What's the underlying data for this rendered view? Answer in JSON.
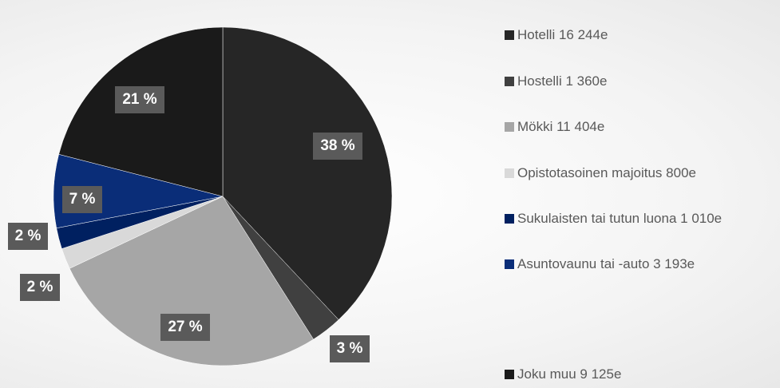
{
  "chart_data": {
    "type": "pie",
    "series": [
      {
        "name": "Hotelli 16 244e",
        "color": "#262626"
      },
      {
        "name": "Hostelli 1 360e",
        "color": "#404040"
      },
      {
        "name": "Mökki 11 404e",
        "color": "#a6a6a6"
      },
      {
        "name": "Opistotasoinen majoitus 800e",
        "color": "#d9d9d9"
      },
      {
        "name": "Sukulaisten tai tutun luona 1 010e",
        "color": "#002060"
      },
      {
        "name": "Asuntovaunu tai -auto 3 193e",
        "color": "#0a2d78"
      },
      {
        "name": "Joku muu 9 125e",
        "color": "#1a1a1a"
      }
    ],
    "values": [
      38,
      3,
      27,
      2,
      2,
      7,
      21
    ],
    "value_labels": [
      "38 %",
      "3 %",
      "27 %",
      "2 %",
      "2 %",
      "7 %",
      "21 %"
    ],
    "legend": "right"
  }
}
